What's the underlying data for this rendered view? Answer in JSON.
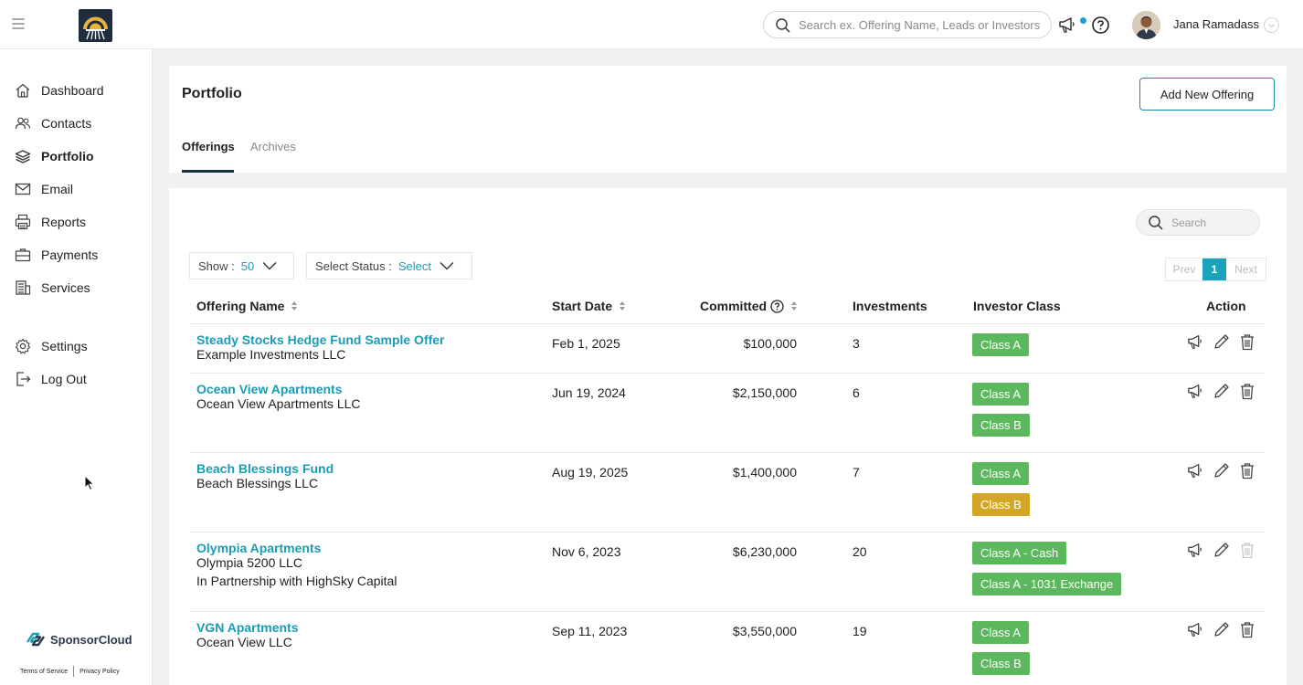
{
  "header": {
    "search_placeholder": "Search ex. Offering Name, Leads or Investors",
    "user_name": "Jana Ramadass"
  },
  "sidebar": {
    "items": [
      {
        "label": "Dashboard",
        "icon": "home-icon"
      },
      {
        "label": "Contacts",
        "icon": "contacts-icon"
      },
      {
        "label": "Portfolio",
        "icon": "layers-icon",
        "active": true
      },
      {
        "label": "Email",
        "icon": "envelope-icon"
      },
      {
        "label": "Reports",
        "icon": "printer-icon"
      },
      {
        "label": "Payments",
        "icon": "briefcase-icon"
      },
      {
        "label": "Services",
        "icon": "building-icon"
      }
    ],
    "bottom_items": [
      {
        "label": "Settings",
        "icon": "gear-icon"
      },
      {
        "label": "Log Out",
        "icon": "logout-icon"
      }
    ],
    "brand": "SponsorCloud",
    "terms": "Terms of Service",
    "privacy": "Privacy Policy"
  },
  "page": {
    "title": "Portfolio",
    "add_button": "Add New Offering",
    "tabs": [
      {
        "label": "Offerings",
        "active": true
      },
      {
        "label": "Archives",
        "active": false
      }
    ]
  },
  "controls": {
    "search_placeholder": "Search",
    "show_label": "Show :",
    "show_value": "50",
    "status_label": "Select Status :",
    "status_value": "Select",
    "pager": {
      "prev": "Prev",
      "current": "1",
      "next": "Next"
    }
  },
  "table": {
    "columns": {
      "name": "Offering Name",
      "start": "Start Date",
      "committed": "Committed",
      "investments": "Investments",
      "investor_class": "Investor Class",
      "action": "Action"
    },
    "rows": [
      {
        "name": "Steady Stocks Hedge Fund Sample Offer",
        "company": "Example Investments LLC",
        "extra": "",
        "start": "Feb 1, 2025",
        "committed": "$100,000",
        "investments": "3",
        "classes": [
          {
            "label": "Class A",
            "color": "#5cb85c"
          }
        ]
      },
      {
        "name": "Ocean View Apartments",
        "company": "Ocean View Apartments LLC",
        "extra": "",
        "start": "Jun 19, 2024",
        "committed": "$2,150,000",
        "investments": "6",
        "classes": [
          {
            "label": "Class A",
            "color": "#5cb85c"
          },
          {
            "label": "Class B",
            "color": "#5cb85c"
          }
        ]
      },
      {
        "name": "Beach Blessings Fund",
        "company": "Beach Blessings LLC",
        "extra": "",
        "start": "Aug 19, 2025",
        "committed": "$1,400,000",
        "investments": "7",
        "classes": [
          {
            "label": "Class A",
            "color": "#5cb85c"
          },
          {
            "label": "Class B",
            "color": "#d4a626"
          }
        ]
      },
      {
        "name": "Olympia Apartments",
        "company": "Olympia 5200 LLC",
        "extra": "In Partnership with HighSky Capital",
        "start": "Nov 6, 2023",
        "committed": "$6,230,000",
        "investments": "20",
        "classes": [
          {
            "label": "Class A - Cash",
            "color": "#5cb85c"
          },
          {
            "label": "Class A - 1031 Exchange",
            "color": "#5cb85c"
          }
        ],
        "delete_disabled": true
      },
      {
        "name": "VGN Apartments",
        "company": "Ocean View LLC",
        "extra": "",
        "start": "Sep 11, 2023",
        "committed": "$3,550,000",
        "investments": "19",
        "classes": [
          {
            "label": "Class A",
            "color": "#5cb85c"
          },
          {
            "label": "Class B",
            "color": "#5cb85c"
          }
        ]
      }
    ]
  }
}
